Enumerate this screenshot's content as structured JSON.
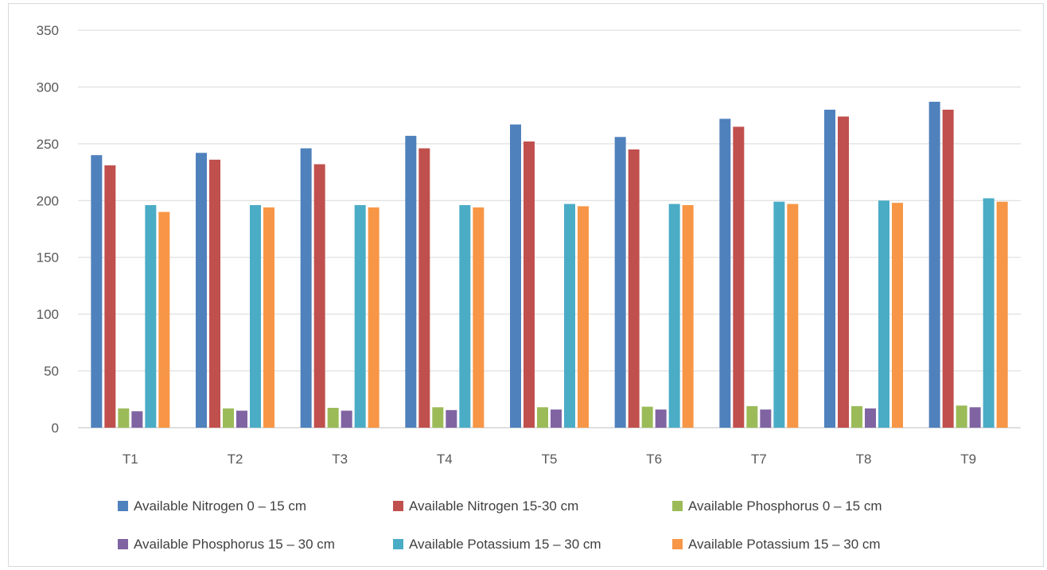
{
  "chart_data": {
    "type": "bar",
    "categories": [
      "T1",
      "T2",
      "T3",
      "T4",
      "T5",
      "T6",
      "T7",
      "T8",
      "T9"
    ],
    "ylim": [
      0,
      350
    ],
    "yticks": [
      0,
      50,
      100,
      150,
      200,
      250,
      300,
      350
    ],
    "grid": true,
    "legend_position": "bottom",
    "series": [
      {
        "name": "Available Nitrogen  0 – 15 cm",
        "color": "#4f81bd",
        "values": [
          240,
          242,
          246,
          257,
          267,
          256,
          272,
          280,
          287
        ]
      },
      {
        "name": "Available Nitrogen  15-30 cm",
        "color": "#c0504d",
        "values": [
          231,
          236,
          232,
          246,
          252,
          245,
          265,
          274,
          280
        ]
      },
      {
        "name": "Available Phosphorus 0 – 15 cm",
        "color": "#9bbb59",
        "values": [
          17,
          17,
          17.5,
          18,
          18,
          18.5,
          19,
          19,
          19.5
        ]
      },
      {
        "name": "Available Phosphorus 15 – 30 cm",
        "color": "#8064a2",
        "values": [
          14.5,
          15,
          15,
          15.5,
          16,
          16,
          16,
          17,
          18
        ]
      },
      {
        "name": "Available Potassium  15 – 30 cm",
        "color": "#4bacc6",
        "values": [
          196,
          196,
          196,
          196,
          197,
          197,
          199,
          200,
          202
        ]
      },
      {
        "name": "Available Potassium  15 – 30 cm",
        "color": "#f79646",
        "values": [
          190,
          194,
          194,
          194,
          195,
          196,
          197,
          198,
          199
        ]
      }
    ]
  }
}
